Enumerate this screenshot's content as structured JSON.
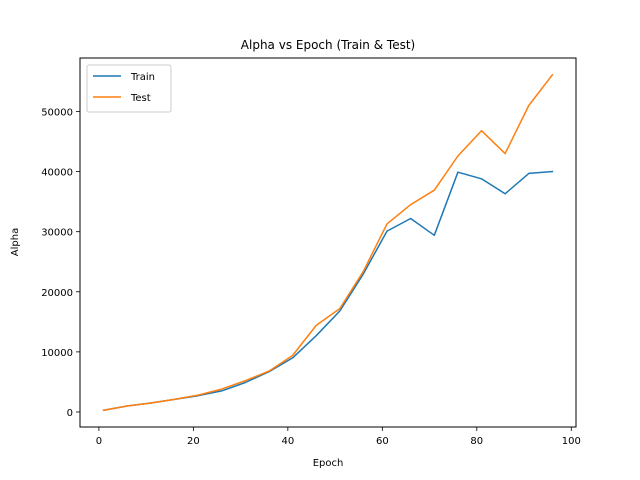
{
  "chart_data": {
    "type": "line",
    "title": "Alpha vs Epoch (Train & Test)",
    "xlabel": "Epoch",
    "ylabel": "Alpha",
    "xlim": [
      -4,
      101
    ],
    "ylim": [
      -2500,
      58900
    ],
    "xticks": [
      0,
      20,
      40,
      60,
      80,
      100
    ],
    "yticks": [
      0,
      10000,
      20000,
      30000,
      40000,
      50000
    ],
    "grid": false,
    "legend_position": "top-left",
    "x": [
      1,
      6,
      11,
      16,
      21,
      26,
      31,
      36,
      41,
      46,
      51,
      56,
      61,
      66,
      71,
      76,
      81,
      86,
      91,
      96
    ],
    "series": [
      {
        "name": "Train",
        "color": "#1f77b4",
        "values": [
          300,
          1000,
          1500,
          2100,
          2700,
          3500,
          4900,
          6700,
          9000,
          12700,
          16800,
          23000,
          30100,
          32200,
          29400,
          39900,
          38800,
          36300,
          39700,
          40000
        ]
      },
      {
        "name": "Test",
        "color": "#ff7f0e",
        "values": [
          300,
          1000,
          1500,
          2100,
          2800,
          3800,
          5200,
          6800,
          9400,
          14400,
          17200,
          23400,
          31300,
          34500,
          36900,
          42600,
          46800,
          43000,
          51000,
          56100
        ]
      }
    ]
  }
}
